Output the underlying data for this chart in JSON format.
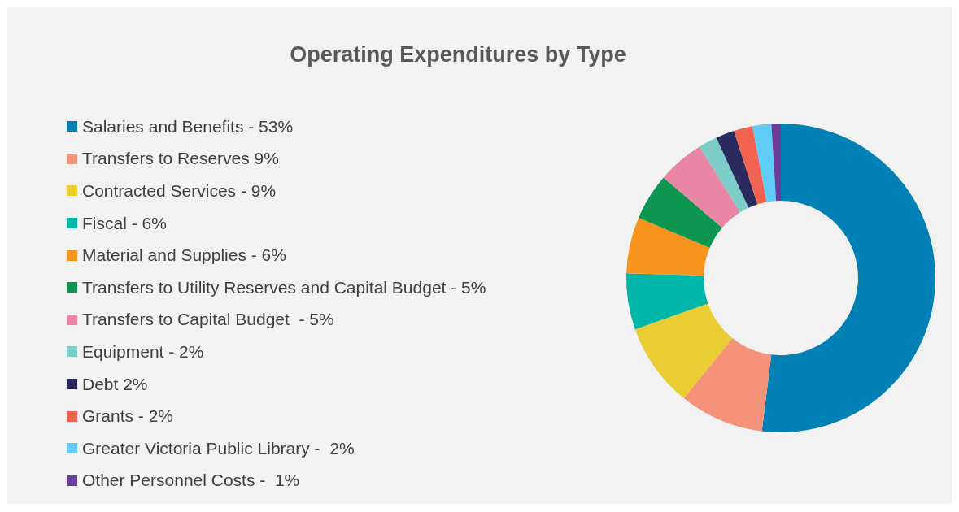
{
  "chart_data": {
    "type": "donut",
    "title": "Operating Expenditures by Type",
    "categories": [
      "Salaries and Benefits - 53%",
      "Transfers to Reserves 9%",
      "Contracted Services - 9%",
      "Fiscal - 6%",
      "Material and Supplies - 6%",
      "Transfers to Utility Reserves and Capital Budget - 5%",
      "Transfers to Capital Budget  - 5%",
      "Equipment - 2%",
      "Debt 2%",
      "Grants - 2%",
      "Greater Victoria Public Library -  2%",
      "Other Personnel Costs -  1%"
    ],
    "values": [
      53,
      9,
      9,
      6,
      6,
      5,
      5,
      2,
      2,
      2,
      2,
      1
    ],
    "colors": [
      "#0080b4",
      "#f4927a",
      "#e9cd33",
      "#00b6a8",
      "#f7941d",
      "#0c9650",
      "#e986a5",
      "#7ccdc8",
      "#2b2a5e",
      "#f26451",
      "#5fcdf7",
      "#6a3d9a"
    ],
    "legend": "left"
  }
}
